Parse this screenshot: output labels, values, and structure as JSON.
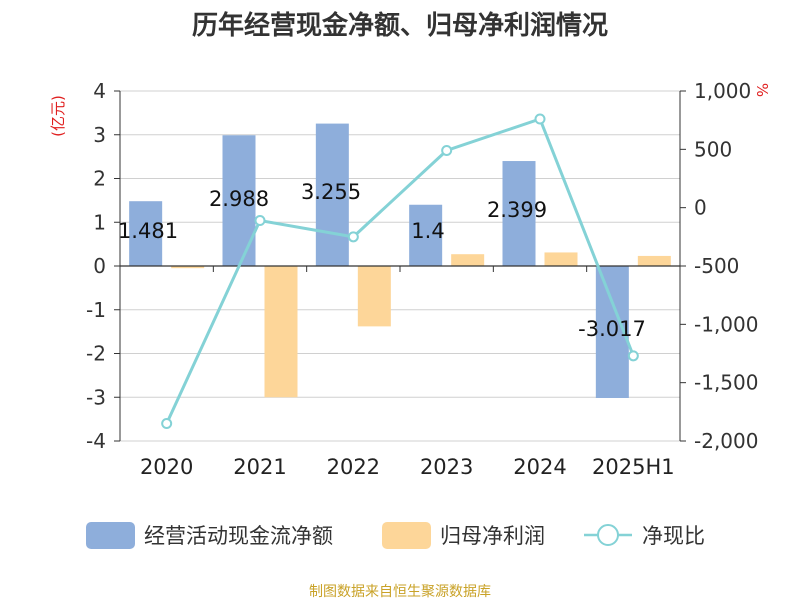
{
  "chart_data": {
    "type": "bar",
    "title": "历年经营现金净额、归母净利润情况",
    "left_unit": "(亿元)",
    "right_unit": "%",
    "categories": [
      "2020",
      "2021",
      "2022",
      "2023",
      "2024",
      "2025H1"
    ],
    "left_axis": {
      "min": -4,
      "max": 4,
      "ticks": [
        "4",
        "3",
        "2",
        "1",
        "0",
        "-1",
        "-2",
        "-3",
        "-4"
      ]
    },
    "right_axis": {
      "min": -2000,
      "max": 1000,
      "ticks": [
        "1,000",
        "500",
        "0",
        "-500",
        "-1,000",
        "-1,500",
        "-2,000"
      ]
    },
    "grid": true,
    "legend_position": "bottom",
    "series": [
      {
        "name": "经营活动现金流净额",
        "type": "bar",
        "axis": "left",
        "color": "#8eaedb",
        "values": [
          1.481,
          2.988,
          3.255,
          1.4,
          2.399,
          -3.017
        ],
        "labels": [
          "1.481",
          "2.988",
          "3.255",
          "1.4",
          "2.399",
          "-3.017"
        ]
      },
      {
        "name": "归母净利润",
        "type": "bar",
        "axis": "left",
        "color": "#fdd699",
        "values": [
          -0.05,
          -3.0,
          -1.38,
          0.27,
          0.31,
          0.23
        ]
      },
      {
        "name": "净现比",
        "type": "line",
        "axis": "right",
        "color": "#84d2d6",
        "values": [
          -1850,
          -110,
          -250,
          490,
          760,
          -1270
        ]
      }
    ],
    "source": "制图数据来自恒生聚源数据库"
  }
}
